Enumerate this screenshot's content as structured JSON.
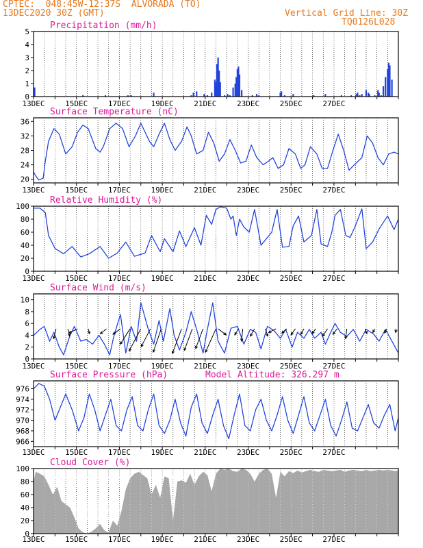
{
  "header": {
    "line1": "CPTEC:  048:45W-12:37S  ALVORADA (TO)",
    "line2": "13DEC2020 30Z (GMT)",
    "grid_note": "Vertical Grid Line: 30Z",
    "code": "TQ0126L028"
  },
  "colors": {
    "series": "#2244dd",
    "title": "#e0189a",
    "header": "#e8781a",
    "cloud": "#a8a8a8",
    "wind": "#000000"
  },
  "x_ticks": [
    "13DEC",
    "15DEC",
    "17DEC",
    "19DEC",
    "21DEC",
    "23DEC",
    "25DEC",
    "27DEC"
  ],
  "chart_data": [
    {
      "id": "precip",
      "type": "bar",
      "title": "Precipitation (mm/h)",
      "ylim": [
        0,
        5
      ],
      "yticks": [
        0,
        1,
        2,
        3,
        4,
        5
      ],
      "xrange_days": [
        0,
        17
      ],
      "x": [
        0.05,
        2.3,
        3.35,
        4.4,
        4.55,
        5.6,
        7.35,
        7.45,
        7.6,
        7.95,
        8.1,
        8.3,
        8.45,
        8.5,
        8.55,
        8.6,
        8.65,
        8.7,
        8.9,
        9.05,
        9.15,
        9.3,
        9.4,
        9.45,
        9.5,
        9.55,
        9.6,
        9.7,
        10.2,
        10.4,
        10.5,
        11.5,
        11.55,
        11.7,
        12.1,
        13.05,
        13.6,
        14.35,
        14.8,
        15.05,
        15.1,
        15.2,
        15.3,
        15.5,
        15.6,
        15.65,
        15.9,
        16.05,
        16.1,
        16.2,
        16.3,
        16.4,
        16.5,
        16.55,
        16.6,
        16.7
      ],
      "values": [
        0.7,
        0.1,
        0.1,
        0.1,
        0.1,
        0.3,
        0.1,
        0.3,
        0.4,
        0.2,
        0.1,
        0.3,
        1.3,
        1.1,
        2.5,
        3.0,
        2.0,
        1.1,
        0.1,
        0.2,
        0.1,
        0.7,
        1.0,
        1.5,
        2.1,
        2.3,
        1.7,
        0.5,
        0.1,
        0.2,
        0.1,
        0.3,
        0.4,
        0.1,
        0.2,
        0.1,
        0.2,
        0.1,
        0.1,
        0.2,
        0.3,
        0.1,
        0.2,
        0.5,
        0.3,
        0.2,
        0.1,
        0.5,
        0.3,
        0.1,
        0.8,
        1.5,
        2.1,
        2.6,
        2.4,
        1.3
      ]
    },
    {
      "id": "temp",
      "type": "line",
      "title": "Surface Temperature (nC)",
      "ylim": [
        19,
        37
      ],
      "yticks": [
        20,
        24,
        28,
        32,
        36
      ],
      "xrange_days": [
        0,
        17
      ],
      "x": [
        0,
        0.15,
        0.25,
        0.45,
        0.55,
        0.7,
        0.95,
        1.2,
        1.5,
        1.8,
        2.05,
        2.3,
        2.55,
        2.9,
        3.1,
        3.25,
        3.55,
        3.85,
        4.15,
        4.45,
        4.75,
        5.0,
        5.4,
        5.6,
        5.85,
        6.1,
        6.35,
        6.6,
        6.9,
        7.15,
        7.35,
        7.6,
        7.9,
        8.15,
        8.4,
        8.65,
        8.9,
        9.15,
        9.4,
        9.65,
        9.9,
        10.15,
        10.4,
        10.7,
        10.95,
        11.15,
        11.4,
        11.65,
        11.9,
        12.2,
        12.45,
        12.65,
        12.9,
        13.2,
        13.45,
        13.7,
        13.95,
        14.2,
        14.45,
        14.7,
        14.95,
        15.3,
        15.55,
        15.8,
        16.05,
        16.3,
        16.55,
        16.8,
        17
      ],
      "values": [
        22,
        20.5,
        19.8,
        20.3,
        25,
        30.5,
        34,
        32.5,
        27,
        29,
        33,
        35,
        34,
        28.5,
        27.5,
        29,
        34,
        35.5,
        34,
        29,
        32,
        35.5,
        30.5,
        29,
        32.5,
        35.5,
        31,
        28,
        30.5,
        34.5,
        32,
        27,
        28,
        33,
        30,
        25,
        27,
        31,
        28,
        24.5,
        25,
        29.5,
        26,
        24,
        25,
        26,
        23,
        24,
        28.5,
        27,
        23,
        24,
        29,
        27,
        23,
        23,
        28,
        32.5,
        28,
        22.5,
        24,
        26,
        32,
        30,
        26,
        24,
        27,
        27.5,
        27
      ]
    },
    {
      "id": "humidity",
      "type": "line",
      "title": "Relative Humidity (%)",
      "ylim": [
        0,
        100
      ],
      "yticks": [
        0,
        20,
        40,
        60,
        80,
        100
      ],
      "xrange_days": [
        0,
        17
      ],
      "x": [
        0,
        0.3,
        0.55,
        0.7,
        1.0,
        1.4,
        1.8,
        2.2,
        2.6,
        3.1,
        3.5,
        3.9,
        4.3,
        4.7,
        5.2,
        5.5,
        5.9,
        6.1,
        6.5,
        6.8,
        7.1,
        7.5,
        7.8,
        8.05,
        8.3,
        8.5,
        8.7,
        8.85,
        9.0,
        9.2,
        9.3,
        9.45,
        9.6,
        9.8,
        10.05,
        10.3,
        10.6,
        10.8,
        11.1,
        11.35,
        11.6,
        11.9,
        12.1,
        12.35,
        12.6,
        12.95,
        13.2,
        13.4,
        13.7,
        13.9,
        14.05,
        14.3,
        14.55,
        14.75,
        15.0,
        15.3,
        15.5,
        15.8,
        16.1,
        16.5,
        16.8,
        17
      ],
      "values": [
        97,
        97,
        90,
        55,
        35,
        27,
        38,
        22,
        27,
        38,
        20,
        28,
        45,
        23,
        28,
        55,
        30,
        50,
        30,
        62,
        38,
        67,
        40,
        86,
        72,
        95,
        99,
        98,
        97,
        80,
        85,
        55,
        80,
        68,
        60,
        95,
        40,
        48,
        60,
        95,
        37,
        38,
        70,
        85,
        45,
        55,
        95,
        42,
        38,
        60,
        86,
        95,
        55,
        52,
        70,
        96,
        35,
        45,
        65,
        85,
        64,
        80
      ]
    },
    {
      "id": "wind",
      "type": "line",
      "title": "Surface Wind (m/s)",
      "ylim": [
        0,
        11
      ],
      "yticks": [
        0,
        2,
        4,
        6,
        8,
        10
      ],
      "xrange_days": [
        0,
        17
      ],
      "x": [
        0,
        0.3,
        0.5,
        0.75,
        0.95,
        1.2,
        1.4,
        1.7,
        1.9,
        2.2,
        2.45,
        2.75,
        3.05,
        3.3,
        3.55,
        3.75,
        4.05,
        4.3,
        4.55,
        4.8,
        5.0,
        5.35,
        5.6,
        5.85,
        6.05,
        6.35,
        6.55,
        6.8,
        7.1,
        7.35,
        7.6,
        7.9,
        8.1,
        8.35,
        8.6,
        8.9,
        9.2,
        9.5,
        9.8,
        10.1,
        10.35,
        10.6,
        10.9,
        11.2,
        11.5,
        11.75,
        12.05,
        12.3,
        12.6,
        12.85,
        13.1,
        13.4,
        13.6,
        13.85,
        14.05,
        14.3,
        14.6,
        14.9,
        15.2,
        15.5,
        15.85,
        16.1,
        16.4,
        16.7,
        17
      ],
      "values": [
        4,
        5,
        5.5,
        3,
        4.5,
        2,
        0.7,
        4,
        5.5,
        3,
        3.3,
        2.5,
        4,
        2.5,
        0.7,
        4,
        7.5,
        1,
        5.5,
        3,
        9.5,
        5,
        2.5,
        6.5,
        3,
        8.5,
        4,
        1.5,
        4.5,
        8,
        5,
        1,
        5,
        9.5,
        3,
        1,
        5.2,
        5.5,
        2.5,
        5,
        4.5,
        1.7,
        5.5,
        4.8,
        3.5,
        5,
        2,
        4.5,
        3.5,
        5,
        3.5,
        4.5,
        2.5,
        4.5,
        6,
        4.5,
        3.8,
        5,
        3,
        5,
        4.2,
        3,
        5,
        3,
        1
      ],
      "barbs": [
        {
          "x": 1.05,
          "u": -0.4,
          "v": -1.6
        },
        {
          "x": 1.6,
          "u": 0.3,
          "v": -1.2
        },
        {
          "x": 2.05,
          "u": -1.4,
          "v": -0.7
        },
        {
          "x": 2.55,
          "u": 0.2,
          "v": -0.8
        },
        {
          "x": 3.4,
          "u": -1.0,
          "v": -0.8
        },
        {
          "x": 4.05,
          "u": -1.2,
          "v": -0.9
        },
        {
          "x": 4.5,
          "u": -1.6,
          "v": -2.5
        },
        {
          "x": 5.0,
          "u": -1.9,
          "v": -3.6
        },
        {
          "x": 5.45,
          "u": -1.5,
          "v": -2.9
        },
        {
          "x": 5.95,
          "u": -1.3,
          "v": -3.8
        },
        {
          "x": 6.9,
          "u": -1.5,
          "v": -4.0
        },
        {
          "x": 7.4,
          "u": -1.3,
          "v": -3.5
        },
        {
          "x": 7.9,
          "u": -1.2,
          "v": -3.2
        },
        {
          "x": 8.5,
          "u": -1.7,
          "v": -3.8
        },
        {
          "x": 8.6,
          "u": 1.3,
          "v": -1.0
        },
        {
          "x": 9.55,
          "u": -0.6,
          "v": -1.0
        },
        {
          "x": 9.75,
          "u": -0.2,
          "v": -2.0
        },
        {
          "x": 10.3,
          "u": -0.7,
          "v": -1.2
        },
        {
          "x": 10.8,
          "u": 0.4,
          "v": -1.2
        },
        {
          "x": 11.3,
          "u": -1.2,
          "v": -0.6
        },
        {
          "x": 11.8,
          "u": -0.8,
          "v": -0.7
        },
        {
          "x": 12.2,
          "u": -0.7,
          "v": -1.0
        },
        {
          "x": 12.6,
          "u": -0.5,
          "v": -0.9
        },
        {
          "x": 13.15,
          "u": -0.6,
          "v": -0.8
        },
        {
          "x": 13.7,
          "u": -0.8,
          "v": -1.2
        },
        {
          "x": 14.15,
          "u": -0.7,
          "v": -0.9
        },
        {
          "x": 14.6,
          "u": -0.2,
          "v": -1.6
        },
        {
          "x": 15.45,
          "u": 0.3,
          "v": -0.8
        },
        {
          "x": 15.9,
          "u": -0.3,
          "v": -0.6
        },
        {
          "x": 16.45,
          "u": -0.3,
          "v": -0.7
        },
        {
          "x": 16.9,
          "u": -0.1,
          "v": -0.6
        }
      ]
    },
    {
      "id": "pressure",
      "type": "line",
      "title": "Surface Pressure (hPa)",
      "model_altitude": "Model Altitude: 326.297 m",
      "ylim": [
        965,
        977.5
      ],
      "yticks": [
        966,
        968,
        970,
        972,
        974,
        976
      ],
      "xrange_days": [
        0,
        17
      ],
      "x": [
        0,
        0.25,
        0.5,
        0.75,
        1.0,
        1.25,
        1.5,
        1.8,
        2.1,
        2.35,
        2.6,
        2.85,
        3.1,
        3.35,
        3.6,
        3.85,
        4.1,
        4.35,
        4.6,
        4.85,
        5.1,
        5.35,
        5.6,
        5.85,
        6.1,
        6.35,
        6.6,
        6.85,
        7.1,
        7.35,
        7.6,
        7.85,
        8.1,
        8.35,
        8.6,
        8.85,
        9.1,
        9.35,
        9.6,
        9.85,
        10.1,
        10.35,
        10.6,
        10.85,
        11.1,
        11.35,
        11.6,
        11.85,
        12.1,
        12.35,
        12.6,
        12.85,
        13.1,
        13.35,
        13.6,
        13.85,
        14.1,
        14.35,
        14.6,
        14.85,
        15.1,
        15.35,
        15.6,
        15.85,
        16.1,
        16.35,
        16.6,
        16.85,
        17
      ],
      "values": [
        976,
        977,
        976.5,
        974,
        970,
        972.5,
        975,
        972,
        968,
        970.5,
        975,
        972,
        968,
        971,
        974,
        969,
        968,
        972,
        974.5,
        969,
        968,
        972,
        975,
        969,
        967.5,
        970,
        974,
        969.5,
        967,
        972.5,
        975,
        969.5,
        967.5,
        971,
        974,
        969,
        966.5,
        971,
        975,
        969,
        968,
        972,
        974,
        970,
        968,
        971,
        974.5,
        970,
        967.5,
        971,
        974.5,
        969.5,
        968,
        971,
        974,
        969,
        967,
        970,
        973.5,
        968.5,
        968,
        970.5,
        973,
        969.5,
        968.5,
        971,
        973,
        968,
        970.5
      ]
    },
    {
      "id": "cloud",
      "type": "area",
      "title": "Cloud Cover (%)",
      "ylim": [
        0,
        100
      ],
      "yticks": [
        0,
        20,
        40,
        60,
        80,
        100
      ],
      "xrange_days": [
        0,
        17
      ],
      "x": [
        0,
        0.1,
        0.3,
        0.5,
        0.7,
        0.9,
        1.1,
        1.3,
        1.5,
        1.7,
        1.9,
        2.1,
        2.3,
        2.5,
        2.7,
        2.9,
        3.1,
        3.3,
        3.5,
        3.7,
        3.9,
        4.1,
        4.3,
        4.5,
        4.7,
        4.9,
        5.1,
        5.3,
        5.5,
        5.7,
        5.9,
        6.1,
        6.3,
        6.5,
        6.7,
        6.9,
        7.1,
        7.3,
        7.5,
        7.7,
        7.9,
        8.1,
        8.3,
        8.5,
        8.7,
        8.9,
        9.1,
        9.3,
        9.5,
        9.7,
        9.9,
        10.1,
        10.3,
        10.5,
        10.7,
        10.9,
        11.1,
        11.3,
        11.5,
        11.7,
        11.9,
        12.1,
        12.3,
        12.5,
        12.7,
        12.9,
        13.1,
        13.3,
        13.5,
        13.7,
        13.9,
        14.1,
        14.3,
        14.5,
        14.7,
        14.9,
        15.1,
        15.3,
        15.5,
        15.7,
        15.9,
        16.1,
        16.3,
        16.5,
        16.7,
        16.9,
        17
      ],
      "values": [
        80,
        95,
        92,
        88,
        75,
        60,
        72,
        50,
        45,
        40,
        25,
        8,
        2,
        0,
        3,
        8,
        15,
        5,
        2,
        20,
        12,
        35,
        68,
        85,
        92,
        95,
        90,
        85,
        60,
        75,
        55,
        88,
        85,
        20,
        80,
        82,
        78,
        92,
        75,
        88,
        95,
        90,
        65,
        92,
        100,
        98,
        100,
        96,
        95,
        100,
        98,
        92,
        80,
        92,
        98,
        100,
        92,
        55,
        95,
        88,
        96,
        93,
        97,
        94,
        96,
        98,
        96,
        95,
        98,
        97,
        96,
        97,
        98,
        95,
        97,
        98,
        97,
        96,
        98,
        96,
        97,
        98,
        97,
        98,
        97,
        96,
        98
      ]
    }
  ]
}
